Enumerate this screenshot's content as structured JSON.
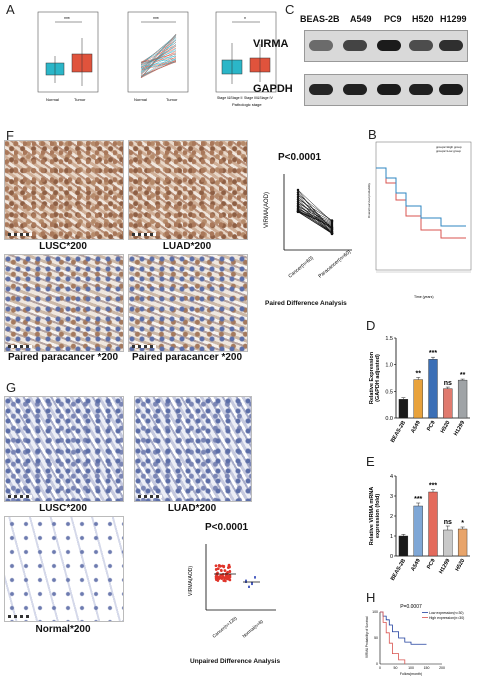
{
  "panels": {
    "A": "A",
    "B": "B",
    "C": "C",
    "D": "D",
    "E": "E",
    "F": "F",
    "G": "G",
    "H": "H"
  },
  "panel_c": {
    "cell_lines": [
      "BEAS-2B",
      "A549",
      "PC9",
      "H520",
      "H1299"
    ],
    "rows": [
      "VIRMA",
      "GAPDH"
    ],
    "virma_intensity": [
      0.55,
      0.75,
      0.95,
      0.7,
      0.85
    ],
    "gapdh_intensity": [
      0.9,
      0.92,
      0.95,
      0.93,
      0.95
    ]
  },
  "panel_f": {
    "captions": [
      "LUSC*200",
      "LUAD*200",
      "Paired paracancer *200",
      "Paired paracancer *200"
    ],
    "p_value": "P<0.0001",
    "ylabel": "VIRMA(AOD)",
    "groups": [
      "Cancer(n=60)",
      "Paracancer(n=60)"
    ],
    "analysis": "Paired Difference Analysis"
  },
  "panel_g": {
    "captions": [
      "LUSC*200",
      "LUAD*200",
      "Normal*200"
    ],
    "p_value": "P<0.0001",
    "ylabel": "VIRMA(AOD)",
    "groups": [
      "Cancer(n=120)",
      "Normal(n=8)"
    ],
    "analysis": "Unpaired Difference Analysis"
  },
  "chart_data": [
    {
      "panel": "D",
      "type": "bar",
      "categories": [
        "BEAS-2B",
        "A549",
        "PC9",
        "H520",
        "H1299"
      ],
      "values": [
        0.35,
        0.72,
        1.1,
        0.55,
        0.71
      ],
      "errors": [
        0.03,
        0.04,
        0.04,
        0.03,
        0.02
      ],
      "significance": [
        "",
        "**",
        "***",
        "ns",
        "**"
      ],
      "colors": [
        "#1a1a1a",
        "#e8a23c",
        "#3b6fb6",
        "#e07a6e",
        "#9fa3a6"
      ],
      "ylabel": "Relative Expression\n(GAPDH adjusted)",
      "yticks": [
        "0.0",
        "0.5",
        "1.0",
        "1.5"
      ],
      "ylim": [
        0,
        1.5
      ]
    },
    {
      "panel": "E",
      "type": "bar",
      "categories": [
        "BEAS-2B",
        "A549",
        "PC9",
        "H1299",
        "H520"
      ],
      "values": [
        1.0,
        2.5,
        3.2,
        1.3,
        1.35
      ],
      "errors": [
        0.08,
        0.15,
        0.12,
        0.2,
        0.1
      ],
      "significance": [
        "",
        "***",
        "***",
        "ns",
        "*"
      ],
      "colors": [
        "#1a1a1a",
        "#7fa7d6",
        "#e36a5c",
        "#c9c9c9",
        "#e8a46a"
      ],
      "ylabel": "Relative VIRMA mRNA\nexpression (fold)",
      "yticks": [
        "0",
        "1",
        "2",
        "3",
        "4"
      ],
      "ylim": [
        0,
        4
      ]
    },
    {
      "panel": "H",
      "type": "line",
      "title": "P=0.0007",
      "series": [
        {
          "name": "Low expression(n=30)",
          "color": "#1f3f9e",
          "x": [
            0,
            10,
            20,
            30,
            40,
            60,
            80,
            100,
            150
          ],
          "y": [
            1.0,
            0.92,
            0.85,
            0.75,
            0.62,
            0.5,
            0.42,
            0.38,
            0.38
          ]
        },
        {
          "name": "High expression(n=30)",
          "color": "#d9534f",
          "x": [
            0,
            10,
            20,
            30,
            40,
            60,
            80
          ],
          "y": [
            1.0,
            0.8,
            0.6,
            0.4,
            0.2,
            0.08,
            0.0
          ]
        }
      ],
      "ylabel": "VIRMA Probability of Survival",
      "xlabel": "Follow(month)",
      "xticks": [
        "0",
        "50",
        "100",
        "150",
        "200"
      ],
      "yticks": [
        "0",
        "50",
        "100"
      ]
    },
    {
      "panel": "A",
      "type": "box",
      "subplots": [
        {
          "categories": [
            "Normal",
            "Tumor"
          ],
          "significance": "***"
        },
        {
          "categories": [
            "Normal",
            "Tumor"
          ],
          "significance": "***"
        },
        {
          "categories": [
            "Stage I&Stage II",
            "Stage III&Stage IV"
          ],
          "xlabel": "Pathologic stage",
          "significance": "*"
        }
      ]
    },
    {
      "panel": "B",
      "type": "line",
      "series": [
        {
          "name": "groups=High group",
          "color": "#d9534f"
        },
        {
          "name": "groups=Low group",
          "color": "#2e86c1"
        }
      ],
      "ylabel": "Overall survival probability",
      "xlabel": "Time (years)",
      "xticks": [
        "0",
        "5",
        "10",
        "15",
        "20"
      ]
    }
  ]
}
